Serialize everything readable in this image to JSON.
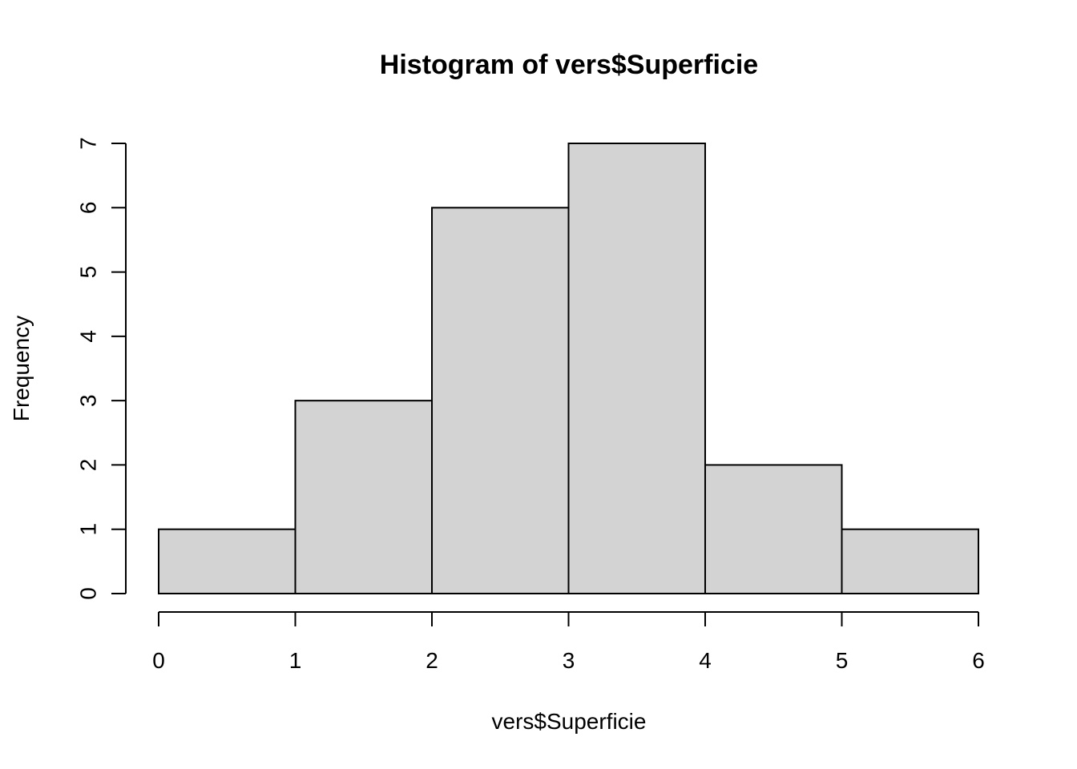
{
  "chart_data": {
    "type": "bar",
    "subtype": "histogram",
    "title": "Histogram of vers$Superficie",
    "xlabel": "vers$Superficie",
    "ylabel": "Frequency",
    "bins": [
      {
        "start": 0,
        "end": 1,
        "count": 1
      },
      {
        "start": 1,
        "end": 2,
        "count": 3
      },
      {
        "start": 2,
        "end": 3,
        "count": 6
      },
      {
        "start": 3,
        "end": 4,
        "count": 7
      },
      {
        "start": 4,
        "end": 5,
        "count": 2
      },
      {
        "start": 5,
        "end": 6,
        "count": 1
      }
    ],
    "xlim": [
      0,
      6
    ],
    "ylim": [
      0,
      7
    ],
    "x_ticks": [
      "0",
      "1",
      "2",
      "3",
      "4",
      "5",
      "6"
    ],
    "y_ticks": [
      "0",
      "1",
      "2",
      "3",
      "4",
      "5",
      "6",
      "7"
    ],
    "grid": false,
    "colors": {
      "bar_fill": "#d3d3d3",
      "bar_stroke": "#000000"
    }
  }
}
